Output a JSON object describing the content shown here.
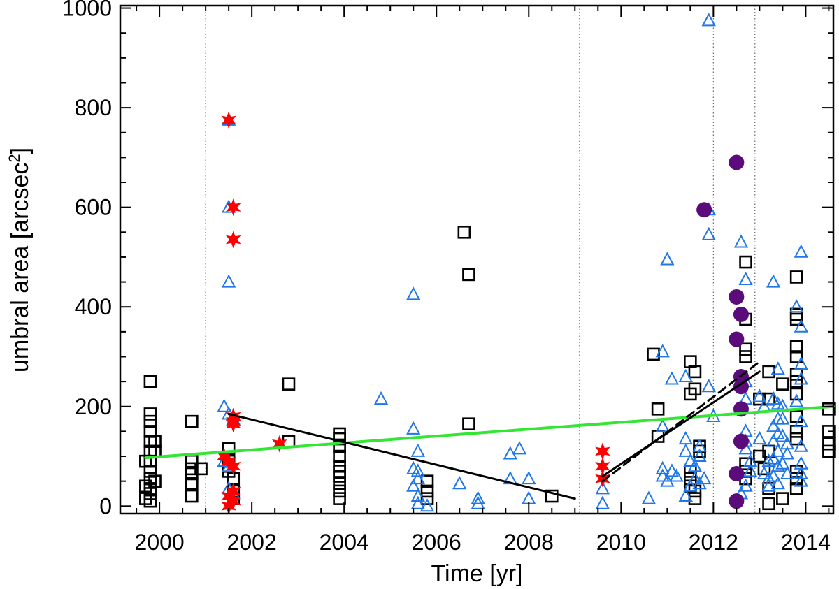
{
  "chart_data": {
    "type": "scatter",
    "title": "",
    "xlabel": "Time [yr]",
    "ylabel_main": "umbral area [arcsec",
    "ylabel_sup": "2",
    "ylabel_close": "]",
    "xlim": [
      1999.15,
      2014.6
    ],
    "ylim": [
      -15,
      1005
    ],
    "xticks": [
      2000,
      2002,
      2004,
      2006,
      2008,
      2010,
      2012,
      2014
    ],
    "yticks": [
      0,
      200,
      400,
      600,
      800,
      1000
    ],
    "grid": false,
    "legend": "none",
    "vertical_dotted_lines": [
      2001.0,
      2009.1,
      2012.0,
      2012.9
    ],
    "colors": {
      "squares": "#000000",
      "triangles": "#1f77e8",
      "stars": "#ff0000",
      "circles": "#5b0b7a",
      "green_fit": "#33e633",
      "fit_lines": "#000000",
      "dotted_lines": "#666666"
    },
    "series": [
      {
        "marker": "square",
        "points": [
          [
            1999.8,
            250
          ],
          [
            1999.8,
            185
          ],
          [
            1999.8,
            170
          ],
          [
            1999.8,
            150
          ],
          [
            1999.8,
            130
          ],
          [
            1999.8,
            110
          ],
          [
            1999.8,
            90
          ],
          [
            1999.8,
            70
          ],
          [
            1999.8,
            55
          ],
          [
            1999.8,
            35
          ],
          [
            1999.8,
            25
          ],
          [
            1999.8,
            10
          ],
          [
            1999.7,
            90
          ],
          [
            1999.7,
            40
          ],
          [
            1999.7,
            15
          ],
          [
            1999.9,
            130
          ],
          [
            1999.9,
            110
          ],
          [
            1999.9,
            50
          ],
          [
            2000.7,
            170
          ],
          [
            2000.7,
            90
          ],
          [
            2000.7,
            75
          ],
          [
            2000.7,
            65
          ],
          [
            2000.7,
            45
          ],
          [
            2000.7,
            20
          ],
          [
            2000.9,
            75
          ],
          [
            2001.5,
            115
          ],
          [
            2001.5,
            90
          ],
          [
            2001.5,
            80
          ],
          [
            2001.5,
            70
          ],
          [
            2001.6,
            55
          ],
          [
            2001.6,
            30
          ],
          [
            2001.6,
            15
          ],
          [
            2002.8,
            245
          ],
          [
            2002.8,
            130
          ],
          [
            2003.9,
            145
          ],
          [
            2003.9,
            135
          ],
          [
            2003.9,
            120
          ],
          [
            2003.9,
            100
          ],
          [
            2003.9,
            80
          ],
          [
            2003.9,
            70
          ],
          [
            2003.9,
            60
          ],
          [
            2003.9,
            45
          ],
          [
            2003.9,
            30
          ],
          [
            2003.9,
            15
          ],
          [
            2005.8,
            30
          ],
          [
            2005.8,
            15
          ],
          [
            2005.8,
            50
          ],
          [
            2006.6,
            550
          ],
          [
            2006.7,
            465
          ],
          [
            2006.7,
            165
          ],
          [
            2008.5,
            20
          ],
          [
            2010.7,
            305
          ],
          [
            2010.8,
            195
          ],
          [
            2010.8,
            140
          ],
          [
            2011.5,
            290
          ],
          [
            2011.5,
            225
          ],
          [
            2011.6,
            270
          ],
          [
            2011.6,
            235
          ],
          [
            2011.5,
            70
          ],
          [
            2011.5,
            55
          ],
          [
            2011.5,
            40
          ],
          [
            2011.6,
            30
          ],
          [
            2011.6,
            15
          ],
          [
            2011.7,
            110
          ],
          [
            2011.7,
            120
          ],
          [
            2012.7,
            490
          ],
          [
            2012.7,
            375
          ],
          [
            2012.7,
            315
          ],
          [
            2012.7,
            300
          ],
          [
            2012.7,
            85
          ],
          [
            2012.7,
            70
          ],
          [
            2012.7,
            55
          ],
          [
            2013.0,
            215
          ],
          [
            2013.0,
            100
          ],
          [
            2013.2,
            270
          ],
          [
            2013.2,
            215
          ],
          [
            2013.2,
            110
          ],
          [
            2013.1,
            75
          ],
          [
            2013.2,
            35
          ],
          [
            2013.2,
            5
          ],
          [
            2013.5,
            245
          ],
          [
            2013.5,
            15
          ],
          [
            2013.8,
            460
          ],
          [
            2013.8,
            385
          ],
          [
            2013.8,
            375
          ],
          [
            2013.8,
            320
          ],
          [
            2013.8,
            300
          ],
          [
            2013.8,
            265
          ],
          [
            2013.8,
            250
          ],
          [
            2013.8,
            225
          ],
          [
            2013.8,
            180
          ],
          [
            2013.8,
            150
          ],
          [
            2013.8,
            135
          ],
          [
            2013.8,
            70
          ],
          [
            2013.8,
            55
          ],
          [
            2013.8,
            35
          ],
          [
            2014.5,
            195
          ],
          [
            2014.5,
            150
          ],
          [
            2014.5,
            125
          ],
          [
            2014.5,
            110
          ]
        ]
      },
      {
        "marker": "triangle",
        "points": [
          [
            2001.5,
            775
          ],
          [
            2001.5,
            600
          ],
          [
            2001.5,
            450
          ],
          [
            2001.4,
            200
          ],
          [
            2001.5,
            185
          ],
          [
            2001.6,
            175
          ],
          [
            2001.4,
            90
          ],
          [
            2001.5,
            80
          ],
          [
            2001.5,
            35
          ],
          [
            2001.6,
            25
          ],
          [
            2004.8,
            215
          ],
          [
            2005.5,
            425
          ],
          [
            2005.5,
            155
          ],
          [
            2005.6,
            110
          ],
          [
            2005.5,
            75
          ],
          [
            2005.6,
            70
          ],
          [
            2005.6,
            55
          ],
          [
            2005.5,
            40
          ],
          [
            2005.6,
            20
          ],
          [
            2005.6,
            5
          ],
          [
            2005.8,
            0
          ],
          [
            2006.5,
            45
          ],
          [
            2006.9,
            15
          ],
          [
            2006.9,
            5
          ],
          [
            2007.6,
            105
          ],
          [
            2007.8,
            115
          ],
          [
            2007.6,
            55
          ],
          [
            2008.0,
            55
          ],
          [
            2008.0,
            15
          ],
          [
            2009.6,
            35
          ],
          [
            2009.6,
            5
          ],
          [
            2010.6,
            15
          ],
          [
            2010.9,
            310
          ],
          [
            2011.0,
            495
          ],
          [
            2011.1,
            255
          ],
          [
            2010.9,
            160
          ],
          [
            2010.9,
            75
          ],
          [
            2010.9,
            60
          ],
          [
            2011.0,
            50
          ],
          [
            2011.1,
            70
          ],
          [
            2011.2,
            60
          ],
          [
            2011.4,
            260
          ],
          [
            2011.4,
            135
          ],
          [
            2011.4,
            110
          ],
          [
            2011.5,
            90
          ],
          [
            2011.5,
            40
          ],
          [
            2011.4,
            20
          ],
          [
            2011.6,
            80
          ],
          [
            2011.6,
            55
          ],
          [
            2011.7,
            120
          ],
          [
            2011.7,
            100
          ],
          [
            2011.7,
            45
          ],
          [
            2011.8,
            55
          ],
          [
            2011.9,
            975
          ],
          [
            2011.9,
            545
          ],
          [
            2011.9,
            595
          ],
          [
            2011.9,
            240
          ],
          [
            2012.0,
            180
          ],
          [
            2012.6,
            530
          ],
          [
            2012.7,
            455
          ],
          [
            2012.7,
            250
          ],
          [
            2012.7,
            215
          ],
          [
            2012.7,
            150
          ],
          [
            2012.7,
            130
          ],
          [
            2012.7,
            115
          ],
          [
            2012.8,
            90
          ],
          [
            2012.8,
            70
          ],
          [
            2012.7,
            40
          ],
          [
            2012.6,
            25
          ],
          [
            2013.0,
            220
          ],
          [
            2013.1,
            200
          ],
          [
            2013.0,
            135
          ],
          [
            2013.2,
            90
          ],
          [
            2013.1,
            65
          ],
          [
            2013.2,
            55
          ],
          [
            2013.2,
            40
          ],
          [
            2013.3,
            450
          ],
          [
            2013.4,
            275
          ],
          [
            2013.3,
            215
          ],
          [
            2013.4,
            205
          ],
          [
            2013.4,
            175
          ],
          [
            2013.3,
            160
          ],
          [
            2013.4,
            145
          ],
          [
            2013.3,
            130
          ],
          [
            2013.4,
            110
          ],
          [
            2013.3,
            95
          ],
          [
            2013.4,
            80
          ],
          [
            2013.3,
            60
          ],
          [
            2013.4,
            45
          ],
          [
            2013.5,
            200
          ],
          [
            2013.5,
            175
          ],
          [
            2013.5,
            140
          ],
          [
            2013.6,
            125
          ],
          [
            2013.6,
            105
          ],
          [
            2013.5,
            85
          ],
          [
            2013.6,
            65
          ],
          [
            2013.9,
            510
          ],
          [
            2013.8,
            400
          ],
          [
            2013.9,
            360
          ],
          [
            2013.9,
            285
          ],
          [
            2013.9,
            255
          ],
          [
            2013.8,
            210
          ],
          [
            2013.9,
            170
          ],
          [
            2013.9,
            120
          ],
          [
            2013.9,
            85
          ],
          [
            2013.9,
            65
          ],
          [
            2013.9,
            50
          ]
        ]
      },
      {
        "marker": "star",
        "points": [
          [
            2001.5,
            775
          ],
          [
            2001.6,
            600
          ],
          [
            2001.6,
            535
          ],
          [
            2001.6,
            180
          ],
          [
            2001.6,
            170
          ],
          [
            2001.6,
            165
          ],
          [
            2001.4,
            100
          ],
          [
            2001.5,
            90
          ],
          [
            2001.6,
            80
          ],
          [
            2001.6,
            30
          ],
          [
            2001.5,
            20
          ],
          [
            2001.6,
            10
          ],
          [
            2001.5,
            0
          ],
          [
            2002.6,
            125
          ],
          [
            2009.6,
            110
          ],
          [
            2009.6,
            80
          ],
          [
            2009.6,
            55
          ]
        ]
      },
      {
        "marker": "circle",
        "points": [
          [
            2012.5,
            690
          ],
          [
            2011.8,
            595
          ],
          [
            2012.5,
            420
          ],
          [
            2012.6,
            385
          ],
          [
            2012.5,
            335
          ],
          [
            2012.6,
            260
          ],
          [
            2012.6,
            240
          ],
          [
            2012.6,
            195
          ],
          [
            2012.6,
            130
          ],
          [
            2012.5,
            65
          ],
          [
            2012.5,
            10
          ]
        ]
      }
    ],
    "fit_lines": [
      {
        "style": "green",
        "x": [
          1999.7,
          2014.6
        ],
        "y": [
          97,
          200
        ]
      },
      {
        "style": "solid",
        "x": [
          2001.5,
          2009.0
        ],
        "y": [
          185,
          15
        ]
      },
      {
        "style": "solid",
        "x": [
          2009.6,
          2013.0
        ],
        "y": [
          60,
          270
        ]
      },
      {
        "style": "dashed",
        "x": [
          2009.6,
          2013.0
        ],
        "y": [
          50,
          290
        ]
      }
    ]
  }
}
